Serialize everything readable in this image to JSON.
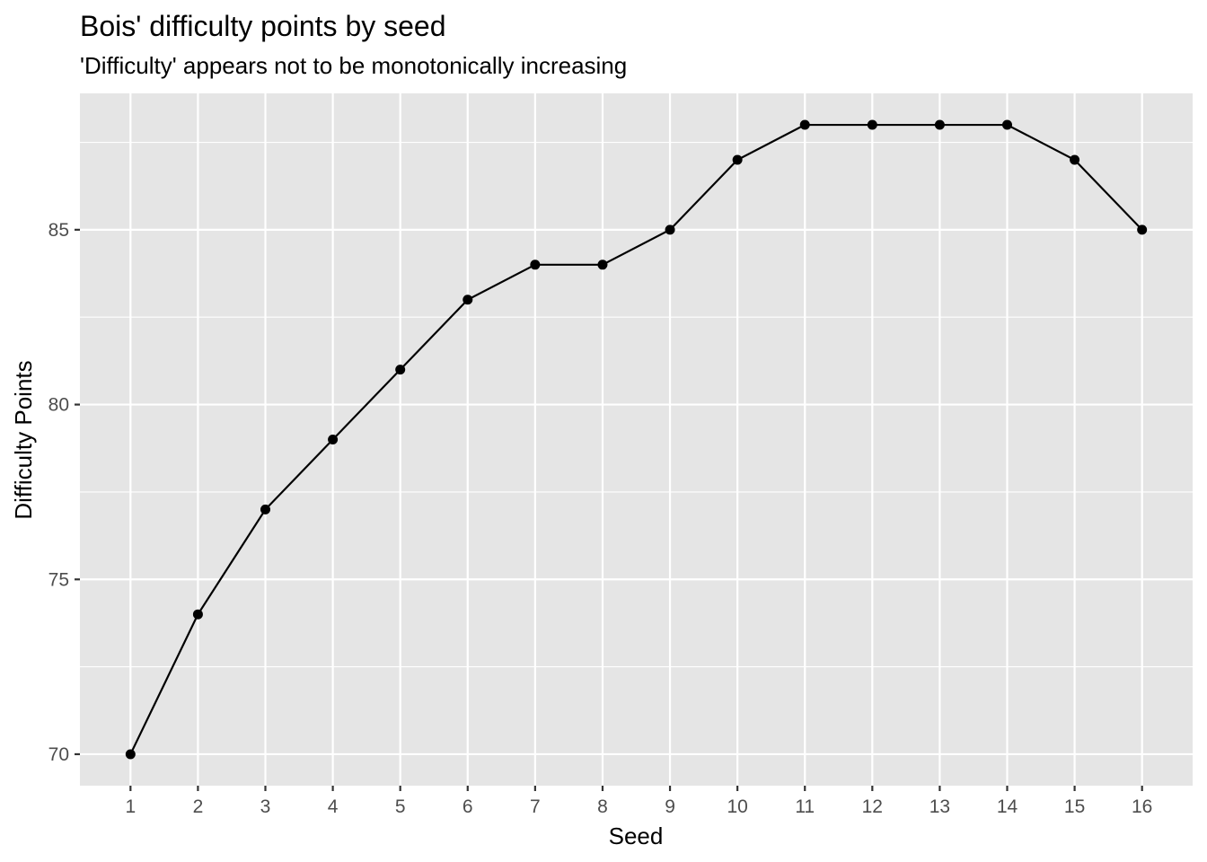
{
  "chart_data": {
    "type": "line",
    "title": "Bois' difficulty points by seed",
    "subtitle": "'Difficulty' appears not to be monotonically increasing",
    "xlabel": "Seed",
    "ylabel": "Difficulty Points",
    "x": [
      1,
      2,
      3,
      4,
      5,
      6,
      7,
      8,
      9,
      10,
      11,
      12,
      13,
      14,
      15,
      16
    ],
    "y": [
      70,
      74,
      77,
      79,
      81,
      83,
      84,
      84,
      85,
      87,
      88,
      88,
      88,
      88,
      87,
      85
    ],
    "x_ticks": [
      "1",
      "2",
      "3",
      "4",
      "5",
      "6",
      "7",
      "8",
      "9",
      "10",
      "11",
      "12",
      "13",
      "14",
      "15",
      "16"
    ],
    "y_ticks": [
      "70",
      "75",
      "80",
      "85"
    ],
    "xlim": [
      0.25,
      16.75
    ],
    "ylim": [
      69.1,
      88.9
    ],
    "grid": true,
    "panel_background": "#e5e5e5",
    "line_color": "#000000",
    "point_color": "#000000"
  }
}
